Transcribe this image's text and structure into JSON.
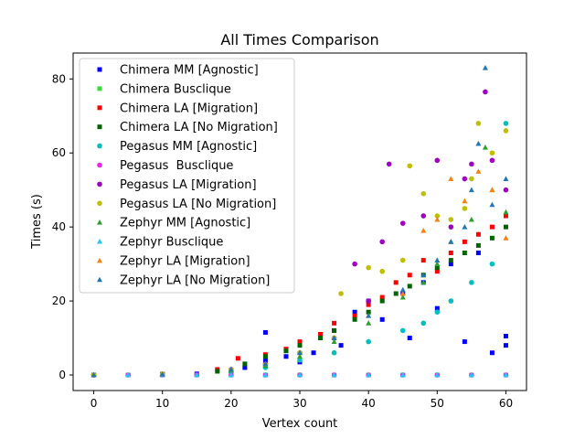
{
  "chart_data": {
    "type": "scatter",
    "title": "All Times Comparison",
    "xlabel": "Vertex count",
    "ylabel": "Times (s)",
    "xlim": [
      -3,
      63
    ],
    "ylim": [
      -4.2,
      87
    ],
    "xticks": [
      0,
      10,
      20,
      30,
      40,
      50,
      60
    ],
    "yticks": [
      0,
      20,
      40,
      60,
      80
    ],
    "grid": false,
    "legend_position": "upper-left",
    "series": [
      {
        "name": "Chimera MM [Agnostic]",
        "color": "#0000ff",
        "marker": "square",
        "x": [
          0,
          5,
          10,
          15,
          20,
          22,
          25,
          25,
          28,
          30,
          32,
          35,
          36,
          38,
          40,
          42,
          45,
          46,
          48,
          50,
          52,
          54,
          56,
          58,
          60,
          60
        ],
        "y": [
          0,
          0,
          0,
          0.3,
          1.2,
          2.0,
          11.5,
          4.0,
          5.0,
          3.5,
          6.0,
          12.0,
          8.0,
          17.0,
          20.0,
          15.0,
          22.0,
          10.0,
          25.0,
          18.0,
          30.0,
          9.0,
          33.0,
          6.0,
          8.0,
          10.5
        ]
      },
      {
        "name": "Chimera Busclique",
        "color": "#33dd33",
        "marker": "square",
        "x": [
          0,
          5,
          10,
          15,
          20,
          25,
          30,
          35,
          40,
          45,
          50,
          55,
          60
        ],
        "y": [
          0,
          0,
          0,
          0,
          0,
          0,
          0,
          0,
          0,
          0,
          0,
          0,
          0
        ]
      },
      {
        "name": "Chimera LA [Migration]",
        "color": "#ff0000",
        "marker": "square",
        "x": [
          0,
          10,
          18,
          21,
          25,
          28,
          30,
          33,
          35,
          38,
          40,
          42,
          44,
          46,
          48,
          50,
          52,
          54,
          56,
          58,
          60
        ],
        "y": [
          0,
          0.2,
          1.5,
          4.5,
          5.5,
          7.0,
          9.0,
          11.0,
          14.0,
          16.0,
          19.0,
          21.0,
          25.0,
          27.0,
          31.0,
          28.0,
          33.0,
          36.0,
          38.0,
          40.0,
          43.0
        ]
      },
      {
        "name": "Chimera LA [No Migration]",
        "color": "#006400",
        "marker": "square",
        "x": [
          0,
          10,
          18,
          22,
          25,
          28,
          30,
          33,
          35,
          38,
          40,
          42,
          44,
          46,
          48,
          50,
          52,
          54,
          56,
          58,
          60
        ],
        "y": [
          0,
          0.2,
          1.0,
          3.0,
          5.0,
          6.5,
          8.0,
          10.0,
          12.0,
          15.0,
          17.0,
          20.0,
          22.0,
          24.0,
          27.0,
          29.0,
          31.0,
          33.0,
          35.0,
          37.0,
          40.0
        ]
      },
      {
        "name": "Pegasus MM [Agnostic]",
        "color": "#00bfbf",
        "marker": "circle",
        "x": [
          0,
          10,
          20,
          25,
          30,
          35,
          40,
          45,
          48,
          50,
          52,
          55,
          58,
          60
        ],
        "y": [
          0,
          0.1,
          0.8,
          2.0,
          4.0,
          6.0,
          9.0,
          12.0,
          14.0,
          17.0,
          20.0,
          25.0,
          30.0,
          68.0
        ]
      },
      {
        "name": "Pegasus  Busclique",
        "color": "#ee22ee",
        "marker": "circle",
        "x": [
          0,
          5,
          10,
          15,
          20,
          25,
          30,
          35,
          40,
          45,
          50,
          55,
          60
        ],
        "y": [
          0,
          0,
          0,
          0,
          0,
          0,
          0,
          0,
          0,
          0,
          0,
          0,
          0
        ]
      },
      {
        "name": "Pegasus LA [Migration]",
        "color": "#a000c0",
        "marker": "circle",
        "x": [
          0,
          10,
          20,
          25,
          30,
          35,
          38,
          40,
          42,
          43,
          45,
          48,
          50,
          52,
          54,
          55,
          57,
          58,
          60
        ],
        "y": [
          0,
          0.2,
          1.5,
          3.0,
          6.0,
          10.0,
          30.0,
          20.0,
          36.0,
          57.0,
          41.0,
          43.0,
          58.0,
          40.0,
          53.0,
          57.0,
          76.5,
          58.0,
          50.0
        ]
      },
      {
        "name": "Pegasus LA [No Migration]",
        "color": "#bfbf00",
        "marker": "circle",
        "x": [
          0,
          10,
          20,
          25,
          30,
          35,
          36,
          40,
          42,
          45,
          46,
          48,
          50,
          52,
          54,
          55,
          56,
          58,
          60
        ],
        "y": [
          0,
          0.2,
          1.4,
          2.8,
          6.0,
          10.0,
          22.0,
          29.0,
          28.0,
          31.0,
          56.5,
          49.0,
          43.0,
          42.0,
          45.0,
          53.0,
          68.0,
          60.0,
          66.0
        ]
      },
      {
        "name": "Zephyr MM [Agnostic]",
        "color": "#2ca02c",
        "marker": "triangle",
        "x": [
          0,
          10,
          20,
          25,
          30,
          35,
          40,
          45,
          48,
          50,
          52,
          55,
          57,
          58,
          60
        ],
        "y": [
          0,
          0.2,
          1.2,
          2.5,
          5.0,
          9.0,
          14.0,
          21.0,
          25.0,
          30.0,
          36.0,
          42.0,
          61.5,
          50.0,
          44.0
        ]
      },
      {
        "name": "Zephyr Busclique",
        "color": "#1ec8ff",
        "marker": "triangle",
        "x": [
          0,
          5,
          10,
          15,
          20,
          25,
          30,
          35,
          40,
          45,
          50,
          55,
          60
        ],
        "y": [
          0,
          0,
          0,
          0,
          0,
          0,
          0,
          0,
          0,
          0,
          0,
          0,
          0
        ]
      },
      {
        "name": "Zephyr LA [Migration]",
        "color": "#ff7f0e",
        "marker": "triangle",
        "x": [
          0,
          10,
          20,
          25,
          30,
          35,
          40,
          45,
          48,
          50,
          52,
          54,
          56,
          58,
          60
        ],
        "y": [
          0,
          0.2,
          1.5,
          3.0,
          6.0,
          10.0,
          16.0,
          22.0,
          39.0,
          42.0,
          53.0,
          47.0,
          55.0,
          50.0,
          37.0
        ]
      },
      {
        "name": "Zephyr LA [No Migration]",
        "color": "#1f77b4",
        "marker": "triangle",
        "x": [
          0,
          10,
          20,
          25,
          30,
          35,
          40,
          45,
          48,
          50,
          52,
          54,
          55,
          56,
          57,
          58,
          60
        ],
        "y": [
          0,
          0.2,
          1.5,
          3.0,
          6.0,
          10.0,
          16.0,
          23.0,
          27.0,
          31.0,
          36.0,
          40.0,
          50.0,
          62.5,
          83.0,
          46.0,
          53.0
        ]
      }
    ]
  }
}
